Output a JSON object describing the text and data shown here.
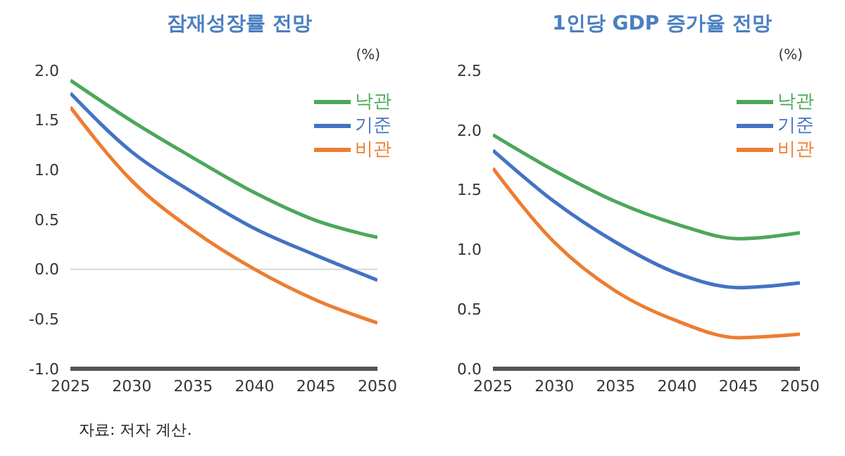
{
  "chart_data": [
    {
      "type": "line",
      "title": "잠재성장률 전망",
      "ylabel": "(%)",
      "x": [
        2025,
        2030,
        2035,
        2040,
        2045,
        2050
      ],
      "xlim": [
        2025,
        2050
      ],
      "xticks": [
        2025,
        2030,
        2035,
        2040,
        2045,
        2050
      ],
      "ylim": [
        -1,
        2
      ],
      "yticks": [
        {
          "value": -1,
          "label": "-1.0"
        },
        {
          "value": -0.5,
          "label": "-0.5"
        },
        {
          "value": 0,
          "label": "0.0"
        },
        {
          "value": 0.5,
          "label": "0.5"
        },
        {
          "value": 1,
          "label": "1.0"
        },
        {
          "value": 1.5,
          "label": "1.5"
        },
        {
          "value": 2,
          "label": "2.0"
        }
      ],
      "grid": false,
      "legend": "top right",
      "marker": "none",
      "line_style": "solid",
      "series": [
        {
          "name": "낙관",
          "color": "#4ca75a",
          "values": [
            1.9,
            1.49,
            1.12,
            0.77,
            0.49,
            0.32
          ]
        },
        {
          "name": "기준",
          "color": "#4472c4",
          "values": [
            1.77,
            1.18,
            0.77,
            0.41,
            0.14,
            -0.11
          ]
        },
        {
          "name": "비관",
          "color": "#ed7d31",
          "values": [
            1.63,
            0.89,
            0.39,
            0.0,
            -0.31,
            -0.54
          ]
        }
      ],
      "ref_lines": [
        {
          "axis": "y",
          "value": 0,
          "color": "#d9d9d9"
        }
      ],
      "annotations": [
        "자료: 저자 계산."
      ]
    },
    {
      "type": "line",
      "title": "1인당 GDP 증가율 전망",
      "ylabel": "(%)",
      "x": [
        2025,
        2030,
        2035,
        2040,
        2045,
        2050
      ],
      "xlim": [
        2025,
        2050
      ],
      "xticks": [
        2025,
        2030,
        2035,
        2040,
        2045,
        2050
      ],
      "ylim": [
        0,
        2.5
      ],
      "yticks": [
        {
          "value": 0,
          "label": "0.0"
        },
        {
          "value": 0.5,
          "label": "0.5"
        },
        {
          "value": 1,
          "label": "1.0"
        },
        {
          "value": 1.5,
          "label": "1.5"
        },
        {
          "value": 2,
          "label": "2.0"
        },
        {
          "value": 2.5,
          "label": "2.5"
        }
      ],
      "grid": false,
      "legend": "top right",
      "marker": "none",
      "line_style": "solid",
      "series": [
        {
          "name": "낙관",
          "color": "#4ca75a",
          "values": [
            1.96,
            1.66,
            1.4,
            1.21,
            1.09,
            1.14
          ]
        },
        {
          "name": "기준",
          "color": "#4472c4",
          "values": [
            1.83,
            1.4,
            1.06,
            0.8,
            0.68,
            0.72
          ]
        },
        {
          "name": "비관",
          "color": "#ed7d31",
          "values": [
            1.68,
            1.06,
            0.65,
            0.4,
            0.26,
            0.29
          ]
        }
      ]
    }
  ]
}
